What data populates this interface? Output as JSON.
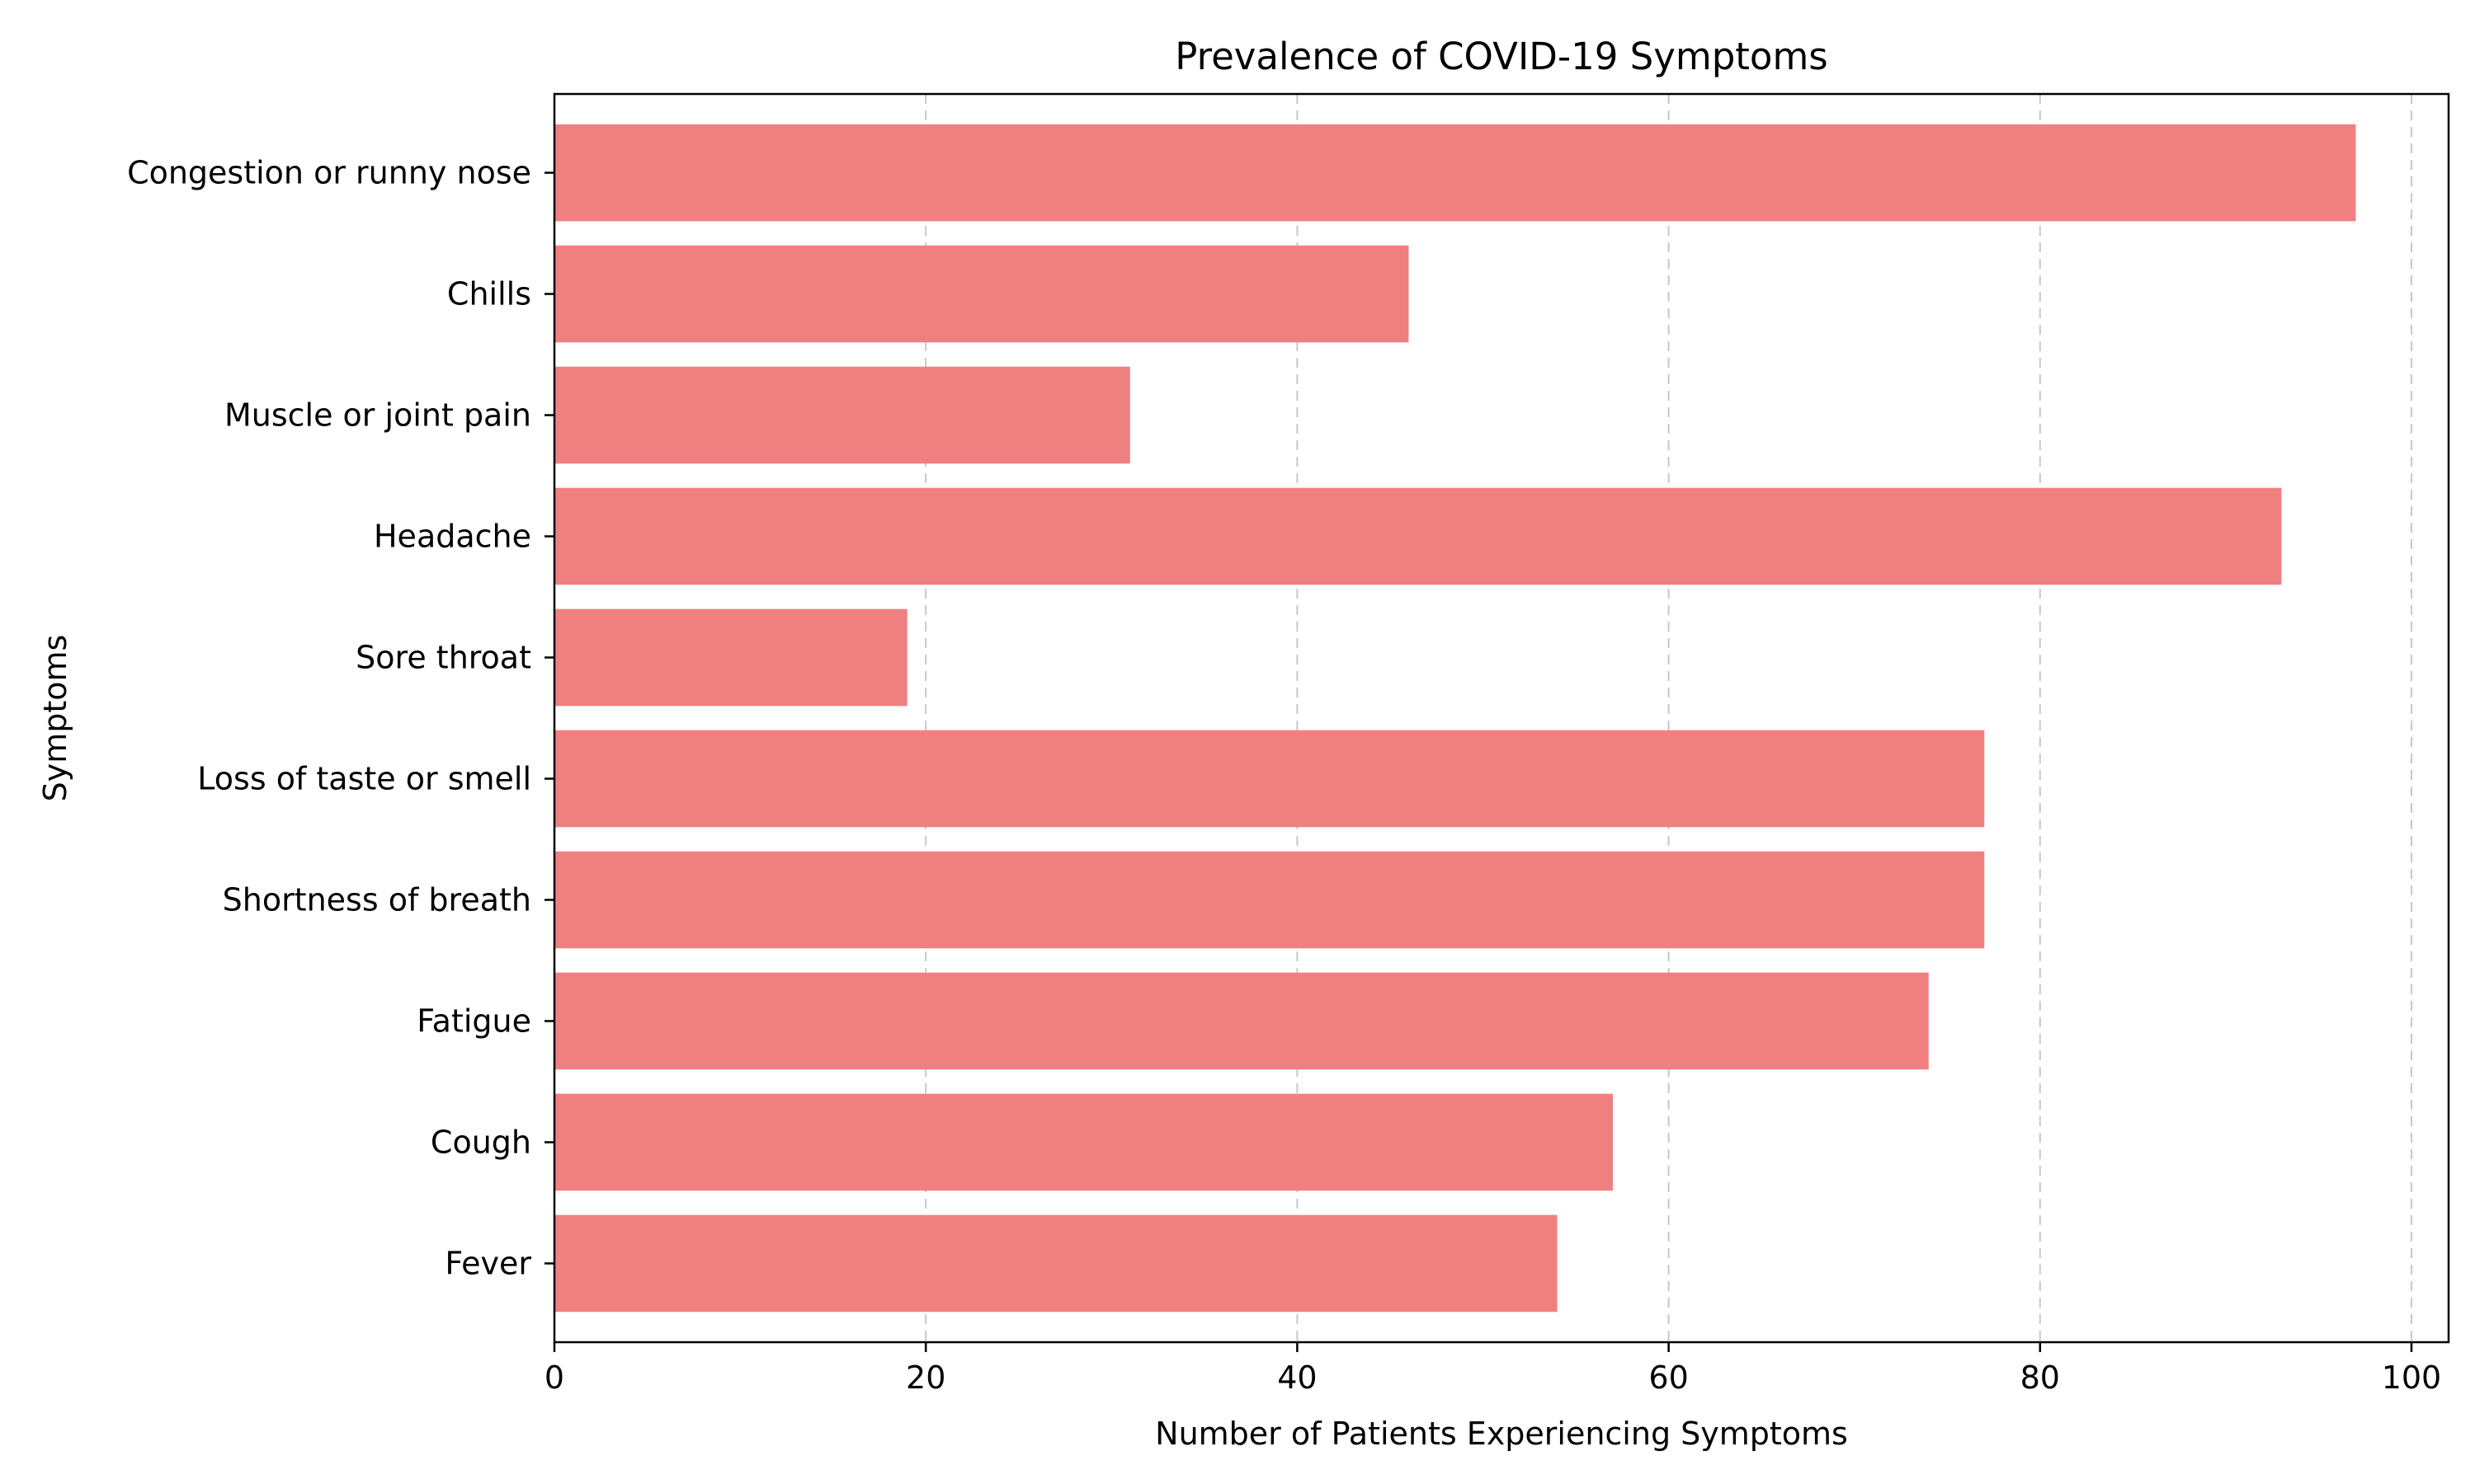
{
  "chart_data": {
    "type": "bar",
    "orientation": "horizontal",
    "title": "Prevalence of COVID-19 Symptoms",
    "xlabel": "Number of Patients Experiencing Symptoms",
    "ylabel": "Symptoms",
    "categories": [
      "Fever",
      "Cough",
      "Fatigue",
      "Shortness of breath",
      "Loss of taste or smell",
      "Sore throat",
      "Headache",
      "Muscle or joint pain",
      "Chills",
      "Congestion or runny nose"
    ],
    "values": [
      54,
      57,
      74,
      77,
      77,
      19,
      93,
      31,
      46,
      97
    ],
    "xlim": [
      0,
      102
    ],
    "xticks": [
      0,
      20,
      40,
      60,
      80,
      100
    ],
    "xtick_labels": [
      "0",
      "20",
      "40",
      "60",
      "80",
      "100"
    ],
    "grid": "x-axis dashed",
    "bar_color": "#f08080",
    "grid_color": "#c8c8c8"
  }
}
